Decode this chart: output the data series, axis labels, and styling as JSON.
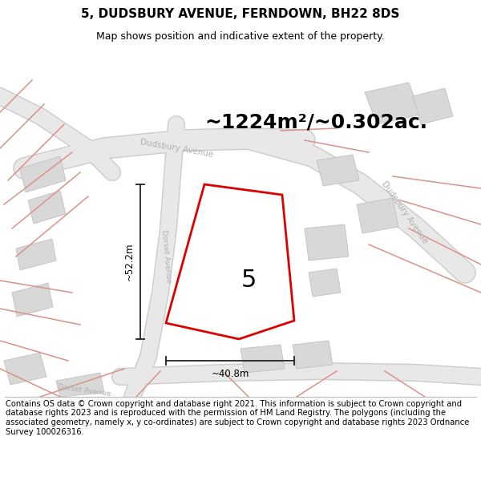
{
  "title": "5, DUDSBURY AVENUE, FERNDOWN, BH22 8DS",
  "subtitle": "Map shows position and indicative extent of the property.",
  "area_label": "~1224m²/~0.302ac.",
  "number_label": "5",
  "dim_horizontal": "~40.8m",
  "dim_vertical": "~52.2m",
  "footer": "Contains OS data © Crown copyright and database right 2021. This information is subject to Crown copyright and database rights 2023 and is reproduced with the permission of HM Land Registry. The polygons (including the associated geometry, namely x, y co-ordinates) are subject to Crown copyright and database rights 2023 Ordnance Survey 100026316.",
  "title_fontsize": 11,
  "subtitle_fontsize": 9,
  "area_fontsize": 18,
  "number_fontsize": 22,
  "footer_fontsize": 7.2,
  "road_label_color": "#b0b0b0",
  "plot_stroke": "#dd0000",
  "dim_line_color": "#222222",
  "building_fill": "#d8d8d8",
  "building_edge": "#c0c0c0",
  "road_fill": "#e8e8e8",
  "road_edge": "#cccccc",
  "pink": "#d9928a",
  "map_bg": "#f5f5f2"
}
